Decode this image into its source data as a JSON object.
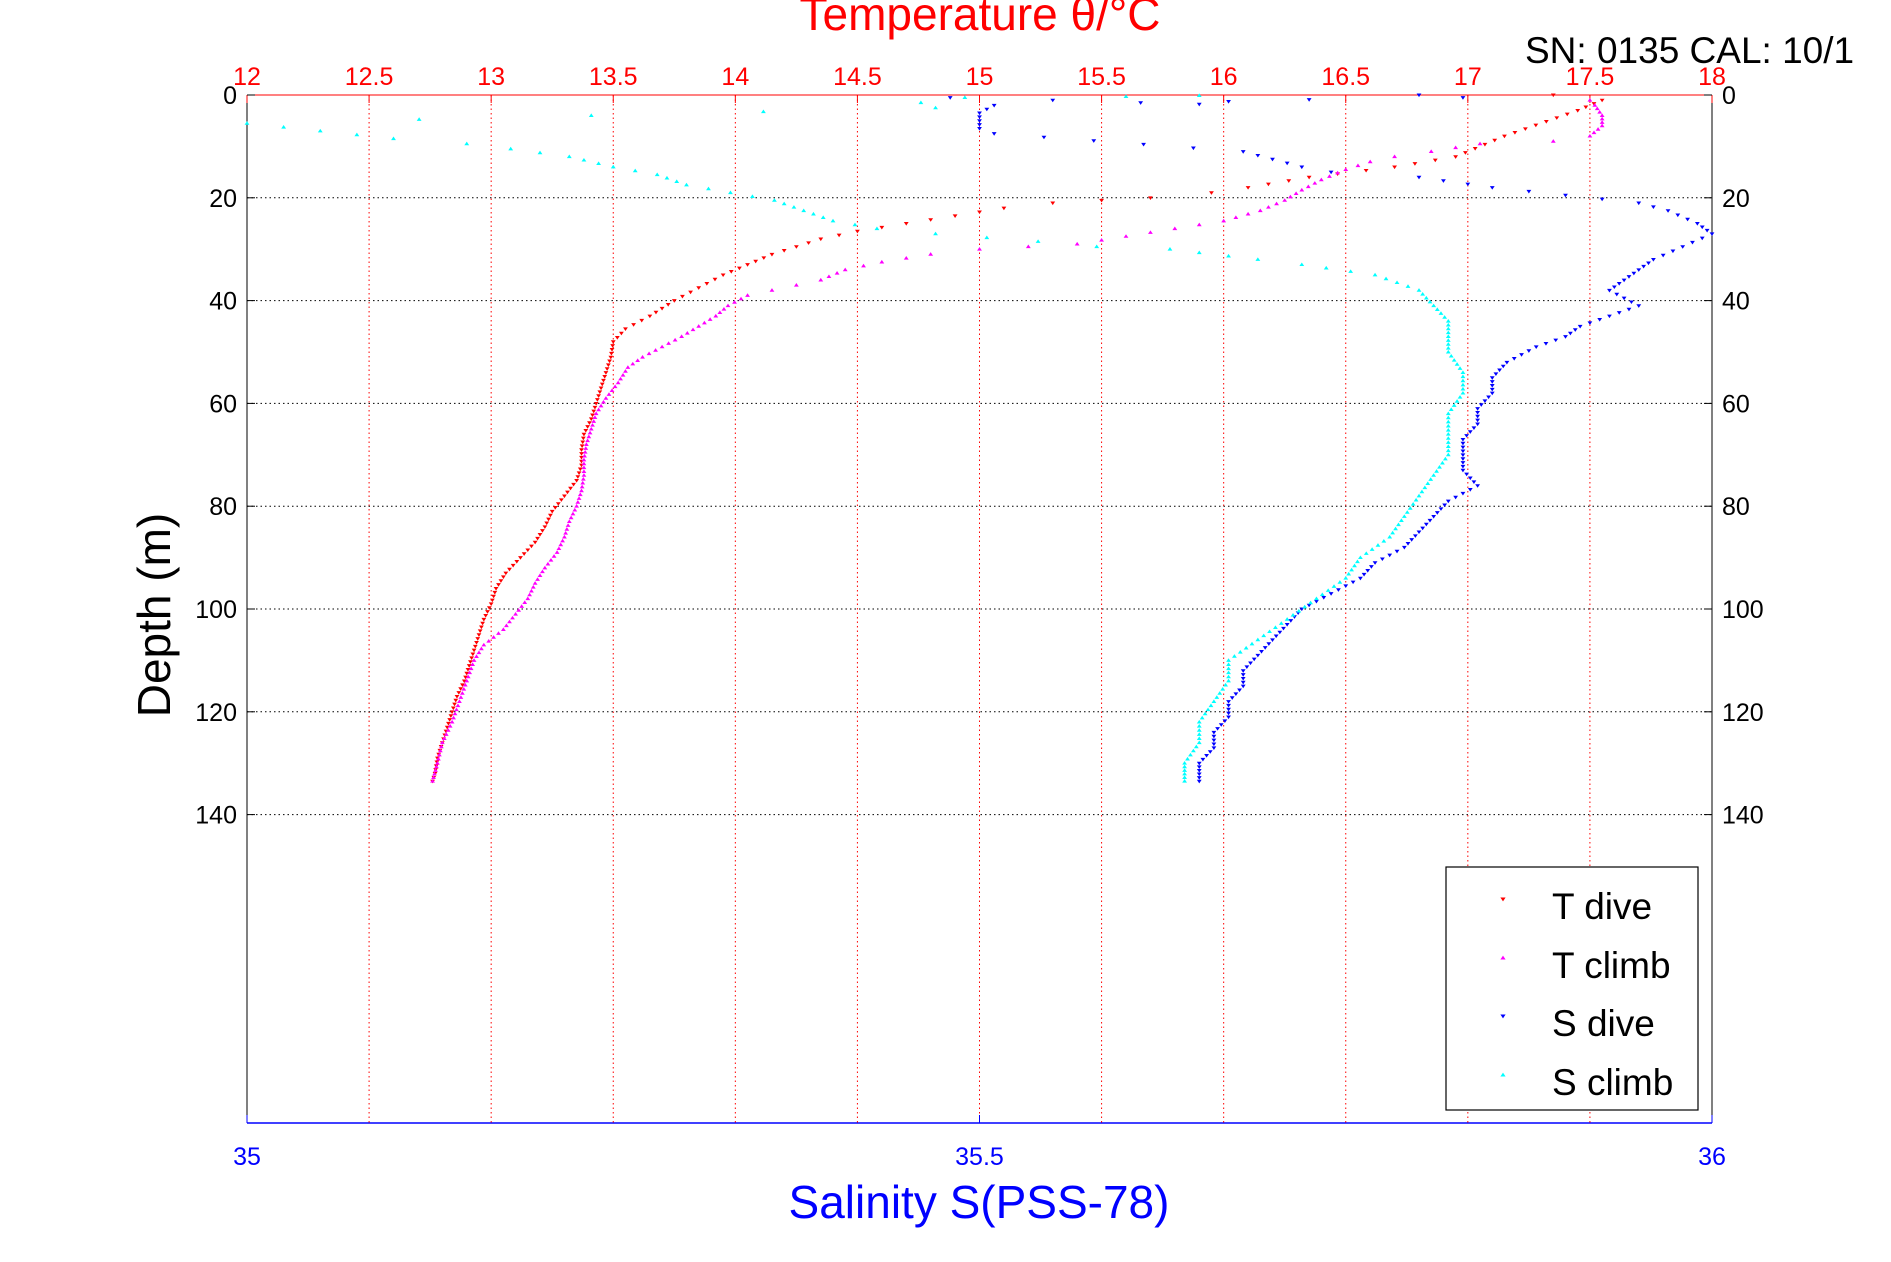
{
  "header": {
    "title": "Temperature θ/°C",
    "serial_calibration": "SN: 0135  CAL: 10/1"
  },
  "chart_data": {
    "type": "scatter",
    "top_axis": {
      "label": "Temperature θ/°C",
      "range": [
        12,
        18
      ],
      "ticks": [
        "12",
        "12.5",
        "13",
        "13.5",
        "14",
        "14.5",
        "15",
        "15.5",
        "16",
        "16.5",
        "17",
        "17.5",
        "18"
      ],
      "color": "#ff0000",
      "grid": true
    },
    "bottom_axis": {
      "label": "Salinity S(PSS-78)",
      "range": [
        35,
        36
      ],
      "ticks": [
        "35",
        "35.5",
        "36"
      ],
      "color": "#0000ff"
    },
    "y_axis": {
      "label": "Depth (m)",
      "range": [
        0,
        200
      ],
      "reversed": true,
      "ticks": [
        "0",
        "20",
        "40",
        "60",
        "80",
        "100",
        "120",
        "140"
      ],
      "grid": true
    },
    "legend": {
      "position": "bottom-right",
      "entries": [
        "T dive",
        "T climb",
        "S dive",
        "S climb"
      ]
    },
    "series": [
      {
        "name": "T dive",
        "axis": "temperature",
        "color": "#ff0000",
        "marker": "triangle-down",
        "points": [
          [
            17.35,
            0
          ],
          [
            17.55,
            1
          ],
          [
            17.45,
            3
          ],
          [
            17.15,
            8
          ],
          [
            16.95,
            12
          ],
          [
            16.7,
            14
          ],
          [
            16.35,
            16
          ],
          [
            16.1,
            18
          ],
          [
            15.95,
            19
          ],
          [
            15.7,
            20
          ],
          [
            15.5,
            20.5
          ],
          [
            15.3,
            21
          ],
          [
            15.1,
            22
          ],
          [
            14.9,
            23.5
          ],
          [
            14.7,
            25
          ],
          [
            14.5,
            26.5
          ],
          [
            14.35,
            28
          ],
          [
            14.25,
            29.5
          ],
          [
            14.15,
            31
          ],
          [
            14.05,
            33
          ],
          [
            13.95,
            35
          ],
          [
            13.85,
            37.5
          ],
          [
            13.75,
            40
          ],
          [
            13.65,
            43
          ],
          [
            13.55,
            45.5
          ],
          [
            13.5,
            48
          ],
          [
            13.49,
            51
          ],
          [
            13.47,
            54
          ],
          [
            13.45,
            57
          ],
          [
            13.43,
            60
          ],
          [
            13.41,
            63
          ],
          [
            13.38,
            66
          ],
          [
            13.37,
            69
          ],
          [
            13.37,
            72
          ],
          [
            13.35,
            75
          ],
          [
            13.3,
            78
          ],
          [
            13.25,
            81
          ],
          [
            13.22,
            84
          ],
          [
            13.18,
            87
          ],
          [
            13.12,
            90
          ],
          [
            13.06,
            93
          ],
          [
            13.02,
            96
          ],
          [
            13.0,
            99
          ],
          [
            12.97,
            102
          ],
          [
            12.95,
            105
          ],
          [
            12.93,
            108
          ],
          [
            12.91,
            111
          ],
          [
            12.89,
            114
          ],
          [
            12.86,
            117
          ],
          [
            12.84,
            120
          ],
          [
            12.82,
            123
          ],
          [
            12.8,
            126
          ],
          [
            12.78,
            129
          ],
          [
            12.77,
            132
          ],
          [
            12.76,
            133.5
          ]
        ]
      },
      {
        "name": "T climb",
        "axis": "temperature",
        "color": "#ff00ff",
        "marker": "triangle-up",
        "points": [
          [
            12.76,
            133.5
          ],
          [
            12.78,
            130
          ],
          [
            12.8,
            126
          ],
          [
            12.84,
            122
          ],
          [
            12.87,
            118
          ],
          [
            12.9,
            114
          ],
          [
            12.93,
            110
          ],
          [
            12.97,
            107
          ],
          [
            13.05,
            104
          ],
          [
            13.1,
            101
          ],
          [
            13.15,
            98
          ],
          [
            13.18,
            95
          ],
          [
            13.22,
            92
          ],
          [
            13.27,
            89
          ],
          [
            13.3,
            86
          ],
          [
            13.32,
            83
          ],
          [
            13.35,
            80
          ],
          [
            13.37,
            77
          ],
          [
            13.38,
            74
          ],
          [
            13.38,
            71
          ],
          [
            13.39,
            68
          ],
          [
            13.41,
            65
          ],
          [
            13.43,
            62
          ],
          [
            13.47,
            59
          ],
          [
            13.52,
            56
          ],
          [
            13.56,
            53
          ],
          [
            13.62,
            51
          ],
          [
            13.7,
            49
          ],
          [
            13.78,
            47
          ],
          [
            13.85,
            45
          ],
          [
            13.92,
            43
          ],
          [
            13.97,
            41
          ],
          [
            14.05,
            39
          ],
          [
            14.15,
            38
          ],
          [
            14.25,
            37
          ],
          [
            14.35,
            36
          ],
          [
            14.45,
            34
          ],
          [
            14.6,
            32.5
          ],
          [
            14.8,
            31
          ],
          [
            15.0,
            30
          ],
          [
            15.2,
            29.5
          ],
          [
            15.4,
            29
          ],
          [
            15.6,
            27.5
          ],
          [
            15.8,
            26
          ],
          [
            16.0,
            24.5
          ],
          [
            16.15,
            22.5
          ],
          [
            16.25,
            20.5
          ],
          [
            16.32,
            18.5
          ],
          [
            16.4,
            16.5
          ],
          [
            16.5,
            14.5
          ],
          [
            16.6,
            13
          ],
          [
            16.7,
            12
          ],
          [
            16.85,
            11
          ],
          [
            17.05,
            9.5
          ],
          [
            17.35,
            9
          ],
          [
            17.5,
            8
          ],
          [
            17.55,
            6
          ],
          [
            17.55,
            4
          ],
          [
            17.52,
            2
          ],
          [
            17.5,
            1
          ]
        ]
      },
      {
        "name": "S dive",
        "axis": "salinity",
        "color": "#0000ff",
        "marker": "triangle-down",
        "points": [
          [
            35.48,
            0.5
          ],
          [
            35.55,
            1
          ],
          [
            35.61,
            1.5
          ],
          [
            35.65,
            1.8
          ],
          [
            35.8,
            0
          ],
          [
            35.83,
            0.5
          ],
          [
            35.51,
            2
          ],
          [
            35.5,
            3.5
          ],
          [
            35.5,
            5
          ],
          [
            35.5,
            6.5
          ],
          [
            35.51,
            7.5
          ],
          [
            35.68,
            11
          ],
          [
            35.7,
            12.5
          ],
          [
            35.72,
            14
          ],
          [
            35.74,
            15
          ],
          [
            35.8,
            16
          ],
          [
            35.85,
            18
          ],
          [
            35.9,
            19.5
          ],
          [
            35.95,
            21
          ],
          [
            35.97,
            22.5
          ],
          [
            35.99,
            25
          ],
          [
            36.0,
            27
          ],
          [
            35.98,
            29.5
          ],
          [
            35.96,
            32
          ],
          [
            35.95,
            34
          ],
          [
            35.94,
            36
          ],
          [
            35.93,
            38
          ],
          [
            35.95,
            41
          ],
          [
            35.93,
            43
          ],
          [
            35.91,
            45
          ],
          [
            35.9,
            47
          ],
          [
            35.88,
            49
          ],
          [
            35.86,
            52
          ],
          [
            35.85,
            55
          ],
          [
            35.85,
            58
          ],
          [
            35.84,
            61
          ],
          [
            35.84,
            64
          ],
          [
            35.83,
            67
          ],
          [
            35.83,
            70
          ],
          [
            35.83,
            73
          ],
          [
            35.84,
            76
          ],
          [
            35.82,
            79
          ],
          [
            35.81,
            82
          ],
          [
            35.8,
            85
          ],
          [
            35.79,
            88
          ],
          [
            35.77,
            91
          ],
          [
            35.76,
            94
          ],
          [
            35.74,
            97
          ],
          [
            35.72,
            100
          ],
          [
            35.71,
            103
          ],
          [
            35.7,
            106
          ],
          [
            35.69,
            109
          ],
          [
            35.68,
            112
          ],
          [
            35.68,
            115
          ],
          [
            35.67,
            118
          ],
          [
            35.67,
            121
          ],
          [
            35.66,
            124
          ],
          [
            35.66,
            127
          ],
          [
            35.65,
            130
          ],
          [
            35.65,
            133.5
          ]
        ]
      },
      {
        "name": "S climb",
        "axis": "salinity",
        "color": "#00ffff",
        "marker": "triangle-up",
        "points": [
          [
            35.64,
            133.5
          ],
          [
            35.64,
            130
          ],
          [
            35.65,
            126
          ],
          [
            35.65,
            122
          ],
          [
            35.66,
            118
          ],
          [
            35.67,
            114
          ],
          [
            35.67,
            110
          ],
          [
            35.69,
            106
          ],
          [
            35.71,
            102
          ],
          [
            35.73,
            98
          ],
          [
            35.75,
            94
          ],
          [
            35.76,
            90
          ],
          [
            35.78,
            86
          ],
          [
            35.79,
            82
          ],
          [
            35.8,
            78
          ],
          [
            35.81,
            74
          ],
          [
            35.82,
            70
          ],
          [
            35.82,
            66
          ],
          [
            35.82,
            62
          ],
          [
            35.83,
            58
          ],
          [
            35.83,
            54
          ],
          [
            35.82,
            50
          ],
          [
            35.82,
            47
          ],
          [
            35.82,
            44
          ],
          [
            35.81,
            41
          ],
          [
            35.8,
            38
          ],
          [
            35.77,
            35
          ],
          [
            35.72,
            33
          ],
          [
            35.69,
            32
          ],
          [
            35.63,
            30
          ],
          [
            35.58,
            29.5
          ],
          [
            35.54,
            28.5
          ],
          [
            35.47,
            27
          ],
          [
            35.43,
            26
          ],
          [
            35.4,
            24.5
          ],
          [
            35.38,
            22.5
          ],
          [
            35.36,
            20.5
          ],
          [
            35.33,
            19
          ],
          [
            35.3,
            17.5
          ],
          [
            35.28,
            15.5
          ],
          [
            35.25,
            14
          ],
          [
            35.22,
            12
          ],
          [
            35.18,
            10.5
          ],
          [
            35.15,
            9.5
          ],
          [
            35.1,
            8.5
          ],
          [
            35.05,
            7
          ],
          [
            35.0,
            5.5
          ],
          [
            35.47,
            2.5
          ],
          [
            35.46,
            1.5
          ],
          [
            35.49,
            0.5
          ],
          [
            35.6,
            0.3
          ],
          [
            35.65,
            0.1
          ]
        ]
      }
    ]
  }
}
